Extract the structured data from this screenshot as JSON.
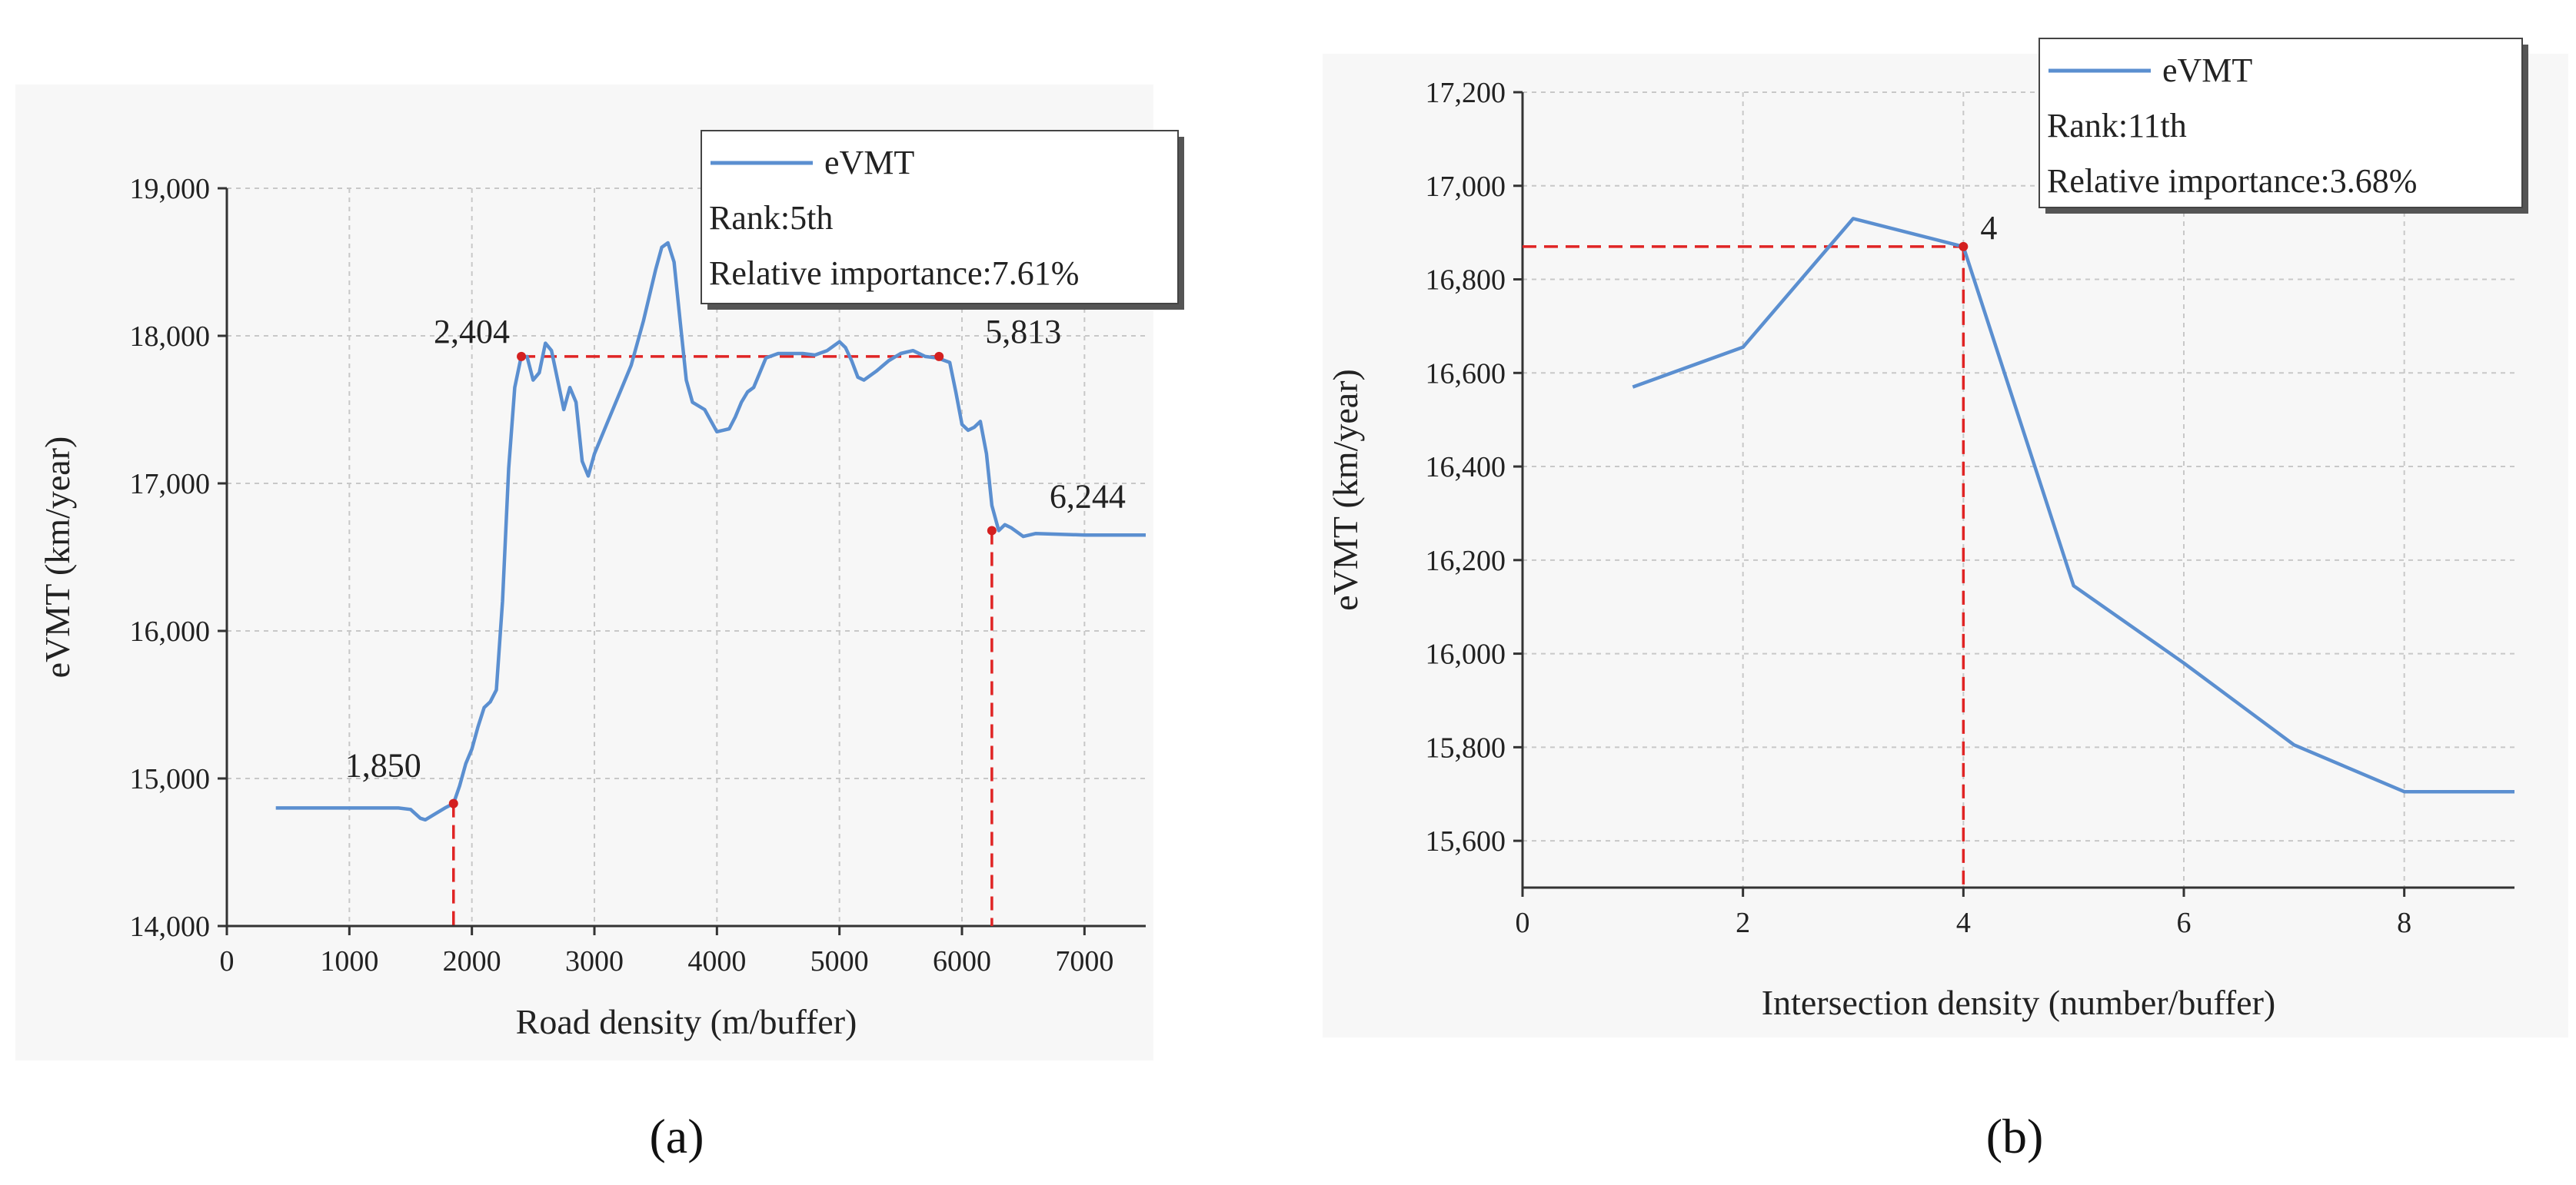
{
  "panel_labels": [
    "(a)",
    "(b)"
  ],
  "chart_data": [
    {
      "type": "line",
      "caption": "(a)",
      "title": "",
      "xlabel": "Road density (m/buffer)",
      "ylabel": "eVMT (km/year)",
      "xlim": [
        0,
        7500
      ],
      "ylim": [
        14000,
        19000
      ],
      "x_ticks": [
        0,
        1000,
        2000,
        3000,
        4000,
        5000,
        6000,
        7000
      ],
      "x_tick_labels": [
        "0",
        "1000",
        "2000",
        "3000",
        "4000",
        "5000",
        "6000",
        "7000"
      ],
      "y_ticks": [
        14000,
        15000,
        16000,
        17000,
        18000,
        19000
      ],
      "y_tick_labels": [
        "14,000",
        "15,000",
        "16,000",
        "17,000",
        "18,000",
        "19,000"
      ],
      "grid": true,
      "legend": {
        "position": "top-right",
        "series_label": "eVMT",
        "lines": [
          "Rank:5th",
          "Relative importance:7.61%"
        ]
      },
      "series": [
        {
          "name": "eVMT",
          "color": "#5b8fd0",
          "x": [
            400,
            600,
            800,
            1000,
            1200,
            1400,
            1500,
            1580,
            1620,
            1700,
            1780,
            1850,
            1900,
            1950,
            2000,
            2050,
            2100,
            2150,
            2200,
            2250,
            2300,
            2350,
            2400,
            2450,
            2500,
            2550,
            2600,
            2650,
            2700,
            2750,
            2800,
            2850,
            2900,
            2950,
            3000,
            3100,
            3200,
            3300,
            3400,
            3500,
            3550,
            3600,
            3650,
            3700,
            3750,
            3800,
            3900,
            4000,
            4050,
            4100,
            4150,
            4200,
            4250,
            4300,
            4400,
            4500,
            4600,
            4700,
            4800,
            4900,
            5000,
            5050,
            5100,
            5150,
            5200,
            5300,
            5400,
            5500,
            5600,
            5700,
            5800,
            5900,
            5950,
            6000,
            6050,
            6100,
            6150,
            6200,
            6244,
            6300,
            6350,
            6400,
            6500,
            6600,
            7000,
            7500
          ],
          "y": [
            14800,
            14800,
            14800,
            14800,
            14800,
            14800,
            14790,
            14730,
            14720,
            14760,
            14800,
            14830,
            14950,
            15100,
            15200,
            15350,
            15480,
            15520,
            15600,
            16200,
            17100,
            17650,
            17850,
            17860,
            17700,
            17750,
            17950,
            17900,
            17700,
            17500,
            17650,
            17550,
            17150,
            17050,
            17200,
            17400,
            17600,
            17800,
            18100,
            18450,
            18600,
            18630,
            18500,
            18100,
            17700,
            17550,
            17500,
            17350,
            17360,
            17370,
            17450,
            17550,
            17620,
            17650,
            17850,
            17880,
            17880,
            17880,
            17870,
            17900,
            17960,
            17920,
            17830,
            17720,
            17700,
            17760,
            17830,
            17880,
            17900,
            17860,
            17850,
            17820,
            17620,
            17400,
            17360,
            17380,
            17420,
            17200,
            16850,
            16680,
            16720,
            16700,
            16640,
            16660,
            16650,
            16650
          ]
        }
      ],
      "reference_points": [
        {
          "label": "1,850",
          "x": 1850,
          "y": 14830
        },
        {
          "label": "2,404",
          "x": 2404,
          "y": 17860
        },
        {
          "label": "5,813",
          "x": 5813,
          "y": 17860
        },
        {
          "label": "6,244",
          "x": 6244,
          "y": 16680
        }
      ]
    },
    {
      "type": "line",
      "caption": "(b)",
      "title": "",
      "xlabel": "Intersection density (number/buffer)",
      "ylabel": "eVMT (km/year)",
      "xlim": [
        0,
        9
      ],
      "ylim": [
        15500,
        17200
      ],
      "x_ticks": [
        0,
        2,
        4,
        6,
        8
      ],
      "x_tick_labels": [
        "0",
        "2",
        "4",
        "6",
        "8"
      ],
      "y_ticks": [
        15600,
        15800,
        16000,
        16200,
        16400,
        16600,
        16800,
        17000,
        17200
      ],
      "y_tick_labels": [
        "15,600",
        "15,800",
        "16,000",
        "16,200",
        "16,400",
        "16,600",
        "16,800",
        "17,000",
        "17,200"
      ],
      "grid": true,
      "legend": {
        "position": "top-right",
        "series_label": "eVMT",
        "lines": [
          "Rank:11th",
          "Relative importance:3.68%"
        ]
      },
      "series": [
        {
          "name": "eVMT",
          "color": "#5b8fd0",
          "x": [
            1,
            2,
            3,
            4,
            5,
            6,
            7,
            8,
            9
          ],
          "y": [
            16570,
            16655,
            16930,
            16870,
            16145,
            15980,
            15805,
            15705,
            15705
          ]
        }
      ],
      "reference_points": [
        {
          "label": "4",
          "x": 4,
          "y": 16870
        }
      ]
    }
  ]
}
